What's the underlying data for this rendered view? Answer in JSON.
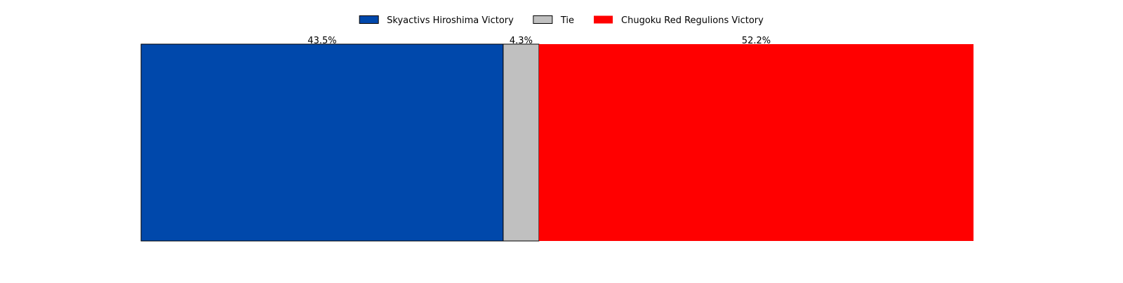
{
  "chart_data": {
    "type": "bar",
    "orientation": "horizontal",
    "stacked": true,
    "title": "",
    "xlabel": "",
    "ylabel": "",
    "xlim": [
      0,
      100
    ],
    "grid": false,
    "axes_visible": false,
    "legend_position": "top-center",
    "series": [
      {
        "name": "Skyactivs Hiroshima Victory",
        "values": [
          43.5
        ],
        "label": "43.5%",
        "color": "#0048AB",
        "edgecolor": "#000000"
      },
      {
        "name": "Tie",
        "values": [
          4.3
        ],
        "label": "4.3%",
        "color": "#C0C0C0",
        "edgecolor": "#000000"
      },
      {
        "name": "Chugoku Red Regulions Victory",
        "values": [
          52.2
        ],
        "label": "52.2%",
        "color": "#FF0000",
        "edgecolor": "none"
      }
    ]
  }
}
